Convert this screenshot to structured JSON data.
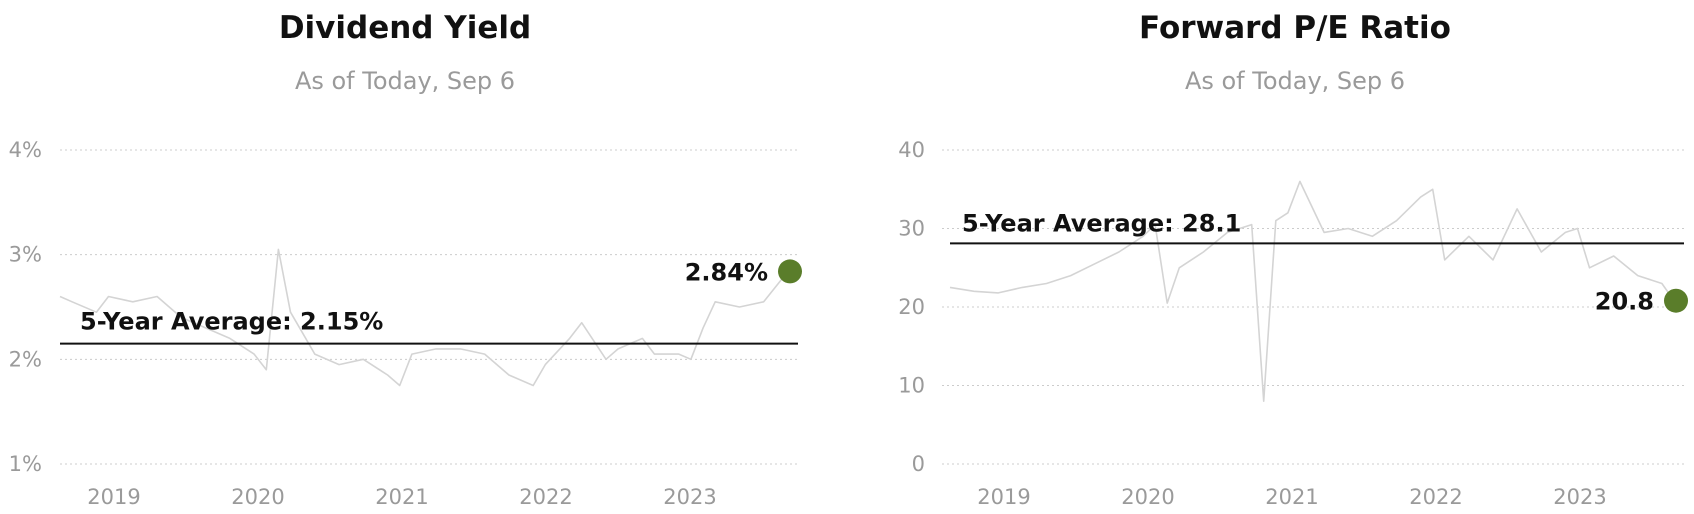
{
  "colors": {
    "series": "#d4d4d4",
    "average_line": "#111111",
    "current_marker": "#5a7d2a",
    "grid": "#cccccc",
    "tick_text": "#9a9a9a"
  },
  "chart_data": [
    {
      "type": "line",
      "title": "Dividend Yield",
      "subtitle": "As of Today, Sep 6",
      "x_ticks": [
        "2019",
        "2020",
        "2021",
        "2022",
        "2023"
      ],
      "y_ticks": [
        "4%",
        "3%",
        "2%",
        "1%"
      ],
      "y_tick_values": [
        4,
        3,
        2,
        1
      ],
      "ylim": [
        1,
        4
      ],
      "xlim": [
        "2018-09",
        "2023-09"
      ],
      "grid": true,
      "average": {
        "label": "5-Year Average: 2.15%",
        "value": 2.15
      },
      "current": {
        "label": "2.84%",
        "value": 2.84,
        "date": "2023-09"
      },
      "series": [
        {
          "x": [
            "2018-09",
            "2018-10",
            "2018-12",
            "2019-01",
            "2019-03",
            "2019-05",
            "2019-07",
            "2019-09",
            "2019-11",
            "2020-01",
            "2020-02",
            "2020-03",
            "2020-04",
            "2020-05",
            "2020-06",
            "2020-08",
            "2020-10",
            "2020-12",
            "2021-01",
            "2021-02",
            "2021-04",
            "2021-06",
            "2021-08",
            "2021-10",
            "2021-12",
            "2022-01",
            "2022-03",
            "2022-04",
            "2022-06",
            "2022-07",
            "2022-09",
            "2022-10",
            "2022-12",
            "2023-01",
            "2023-02",
            "2023-03",
            "2023-05",
            "2023-07",
            "2023-09"
          ],
          "values": [
            2.6,
            2.55,
            2.45,
            2.6,
            2.55,
            2.6,
            2.4,
            2.3,
            2.2,
            2.05,
            1.9,
            3.05,
            2.45,
            2.25,
            2.05,
            1.95,
            2.0,
            1.85,
            1.75,
            2.05,
            2.1,
            2.1,
            2.05,
            1.85,
            1.75,
            1.95,
            2.2,
            2.35,
            2.0,
            2.1,
            2.2,
            2.05,
            2.05,
            2.0,
            2.3,
            2.55,
            2.5,
            2.55,
            2.84
          ]
        }
      ]
    },
    {
      "type": "line",
      "title": "Forward P/E Ratio",
      "subtitle": "As of Today, Sep 6",
      "x_ticks": [
        "2019",
        "2020",
        "2021",
        "2022",
        "2023"
      ],
      "y_ticks": [
        "40",
        "30",
        "20",
        "10",
        "0"
      ],
      "y_tick_values": [
        40,
        30,
        20,
        10,
        0
      ],
      "ylim": [
        0,
        40
      ],
      "xlim": [
        "2018-09",
        "2023-09"
      ],
      "grid": true,
      "average": {
        "label": "5-Year Average: 28.1",
        "value": 28.1
      },
      "current": {
        "label": "20.8",
        "value": 20.8,
        "date": "2023-09"
      },
      "series": [
        {
          "x": [
            "2018-09",
            "2018-11",
            "2019-01",
            "2019-03",
            "2019-05",
            "2019-07",
            "2019-09",
            "2019-11",
            "2020-01",
            "2020-02",
            "2020-03",
            "2020-04",
            "2020-06",
            "2020-08",
            "2020-10",
            "2020-11",
            "2020-12",
            "2021-01",
            "2021-02",
            "2021-04",
            "2021-06",
            "2021-08",
            "2021-10",
            "2021-12",
            "2022-01",
            "2022-02",
            "2022-04",
            "2022-06",
            "2022-08",
            "2022-10",
            "2022-12",
            "2023-01",
            "2023-02",
            "2023-04",
            "2023-06",
            "2023-08",
            "2023-09"
          ],
          "values": [
            22.5,
            22.0,
            21.8,
            22.5,
            23.0,
            24.0,
            25.5,
            27.0,
            29.0,
            30.5,
            20.5,
            25.0,
            27.0,
            29.5,
            30.5,
            8.0,
            31.0,
            32.0,
            36.0,
            29.5,
            30.0,
            29.0,
            31.0,
            34.0,
            35.0,
            26.0,
            29.0,
            26.0,
            32.5,
            27.0,
            29.5,
            30.0,
            25.0,
            26.5,
            24.0,
            23.0,
            20.8
          ]
        }
      ]
    }
  ]
}
